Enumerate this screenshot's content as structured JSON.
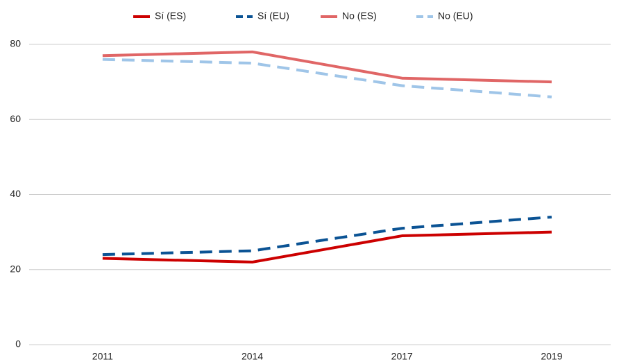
{
  "chart_data": {
    "type": "line",
    "categories": [
      "2011",
      "2014",
      "2017",
      "2019"
    ],
    "series": [
      {
        "name": "Sí (ES)",
        "color": "#cc0000",
        "dashed": false,
        "values": [
          23,
          22,
          29,
          30
        ]
      },
      {
        "name": "Sí (EU)",
        "color": "#0b5394",
        "dashed": true,
        "values": [
          24,
          25,
          31,
          34
        ]
      },
      {
        "name": "No (ES)",
        "color": "#e06666",
        "dashed": false,
        "values": [
          77,
          78,
          71,
          70
        ]
      },
      {
        "name": "No (EU)",
        "color": "#9fc5e8",
        "dashed": true,
        "values": [
          76,
          75,
          69,
          66
        ]
      }
    ],
    "ylim": [
      0,
      80
    ],
    "yticks": [
      0,
      20,
      40,
      60,
      80
    ],
    "grid": true,
    "legend": "top"
  }
}
